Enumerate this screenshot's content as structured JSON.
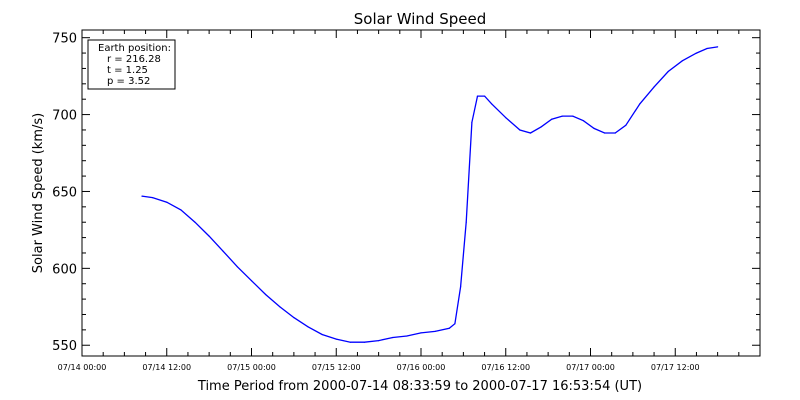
{
  "chart_data": {
    "type": "line",
    "title": "Solar Wind Speed",
    "xlabel": "Time Period from 2000-07-14 08:33:59 to 2000-07-17 16:53:54 (UT)",
    "ylabel": "Solar Wind Speed (km/s)",
    "x_unit": "hours since 07/14 00:00",
    "xlim": [
      0,
      96
    ],
    "ylim": [
      543,
      755
    ],
    "x_ticks": [
      {
        "value": 0,
        "label": "07/14 00:00"
      },
      {
        "value": 12,
        "label": "07/14 12:00"
      },
      {
        "value": 24,
        "label": "07/15 00:00"
      },
      {
        "value": 36,
        "label": "07/15 12:00"
      },
      {
        "value": 48,
        "label": "07/16 00:00"
      },
      {
        "value": 60,
        "label": "07/16 12:00"
      },
      {
        "value": 72,
        "label": "07/17 00:00"
      },
      {
        "value": 84,
        "label": "07/17 12:00"
      }
    ],
    "y_ticks": [
      {
        "value": 550,
        "label": "550"
      },
      {
        "value": 600,
        "label": "600"
      },
      {
        "value": 650,
        "label": "650"
      },
      {
        "value": 700,
        "label": "700"
      },
      {
        "value": 750,
        "label": "750"
      }
    ],
    "grid": false,
    "series": [
      {
        "color": "#0000ff",
        "points": [
          [
            8.5,
            647
          ],
          [
            10,
            646
          ],
          [
            12,
            643
          ],
          [
            14,
            638
          ],
          [
            16,
            630
          ],
          [
            18,
            621
          ],
          [
            20,
            611
          ],
          [
            22,
            601
          ],
          [
            24,
            592
          ],
          [
            26,
            583
          ],
          [
            28,
            575
          ],
          [
            30,
            568
          ],
          [
            32,
            562
          ],
          [
            34,
            557
          ],
          [
            36,
            554
          ],
          [
            38,
            552
          ],
          [
            40,
            552
          ],
          [
            42,
            553
          ],
          [
            44,
            555
          ],
          [
            46,
            556
          ],
          [
            48,
            558
          ],
          [
            50,
            559
          ],
          [
            52,
            561
          ],
          [
            52.8,
            564
          ],
          [
            53.6,
            588
          ],
          [
            54.4,
            630
          ],
          [
            55.2,
            695
          ],
          [
            56,
            712
          ],
          [
            57,
            712
          ],
          [
            58,
            707
          ],
          [
            60,
            698
          ],
          [
            62,
            690
          ],
          [
            63.5,
            688
          ],
          [
            65,
            692
          ],
          [
            66.5,
            697
          ],
          [
            68,
            699
          ],
          [
            69.5,
            699
          ],
          [
            71,
            696
          ],
          [
            72.5,
            691
          ],
          [
            74,
            688
          ],
          [
            75.5,
            688
          ],
          [
            77,
            693
          ],
          [
            79,
            707
          ],
          [
            81,
            718
          ],
          [
            83,
            728
          ],
          [
            85,
            735
          ],
          [
            87,
            740
          ],
          [
            88.5,
            743
          ],
          [
            90,
            744
          ]
        ]
      }
    ]
  },
  "legend_box": {
    "line1": "Earth position:",
    "line2": "r = 216.28",
    "line3": "t = 1.25",
    "line4": "p = 3.52"
  }
}
